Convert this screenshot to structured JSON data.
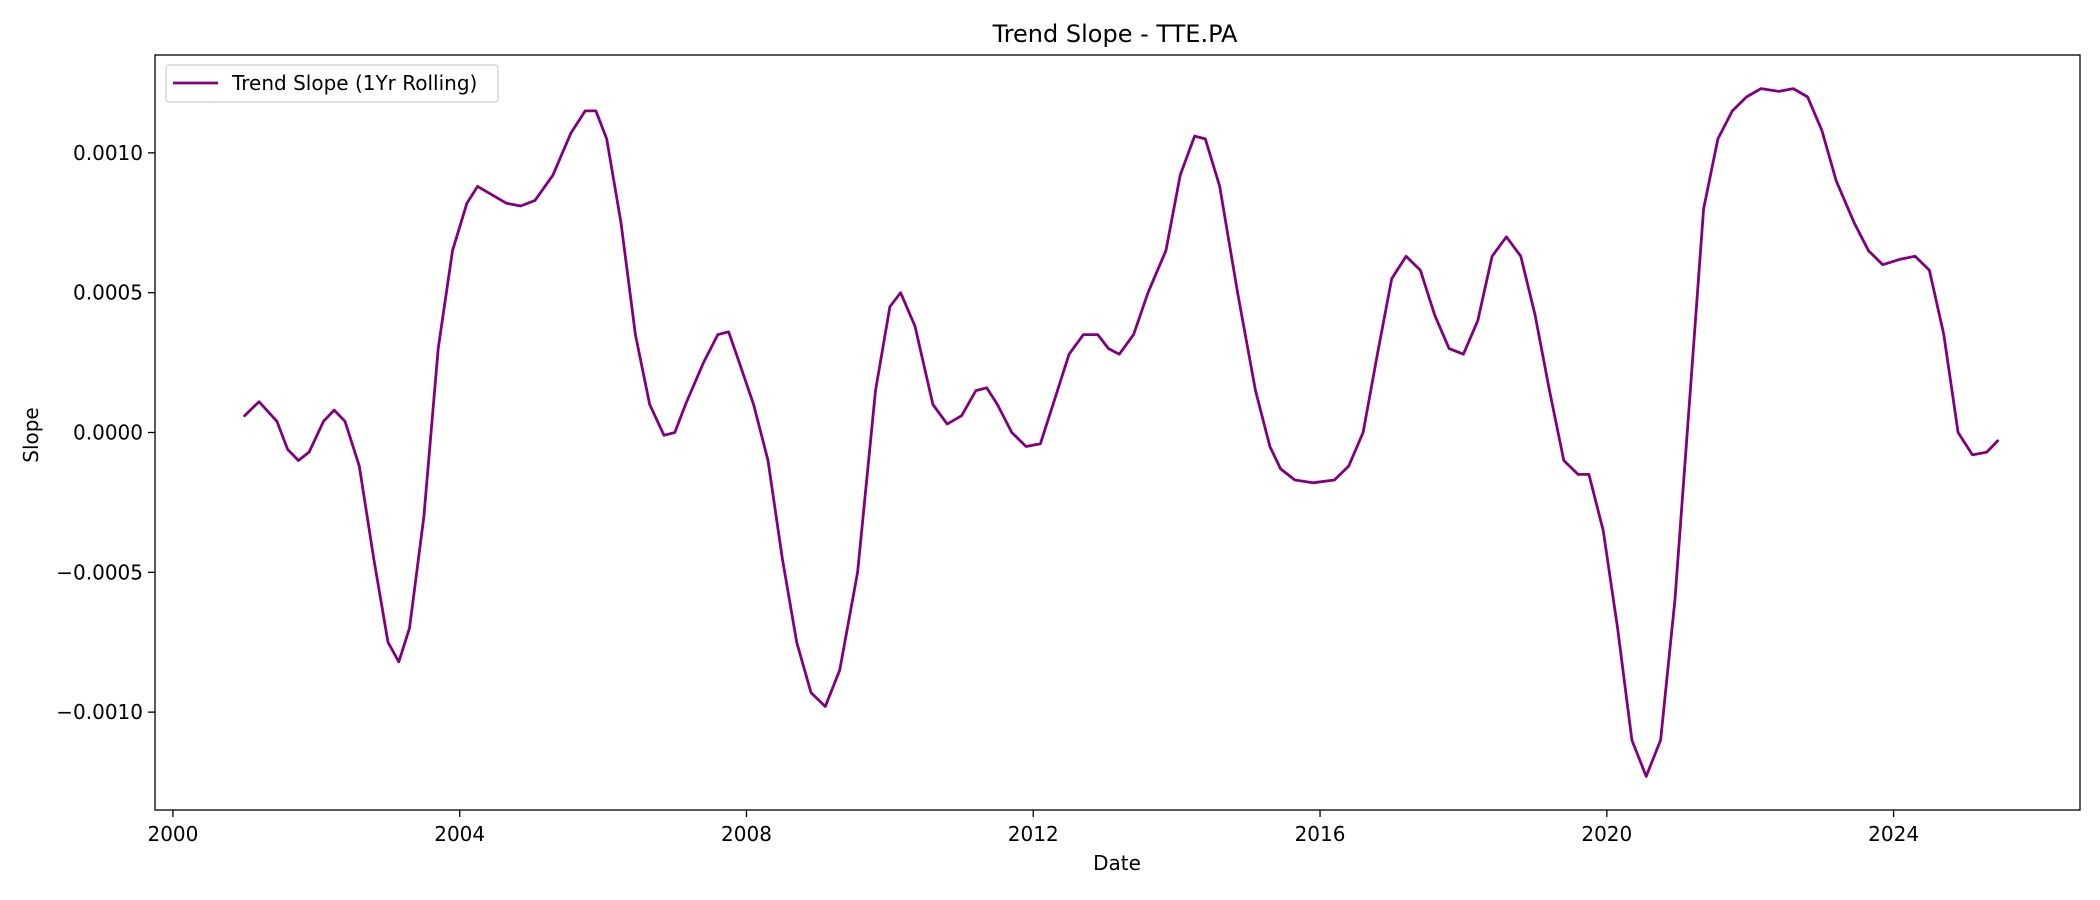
{
  "chart_data": {
    "type": "line",
    "title": "Trend Slope - TTE.PA",
    "xlabel": "Date",
    "ylabel": "Slope",
    "xlim": [
      1999.75,
      2026.6
    ],
    "ylim": [
      -0.00135,
      0.00135
    ],
    "x_ticks": [
      2000,
      2004,
      2008,
      2012,
      2016,
      2020,
      2024
    ],
    "x_tick_labels": [
      "2000",
      "2004",
      "2008",
      "2012",
      "2016",
      "2020",
      "2024"
    ],
    "y_ticks": [
      0.001,
      0.0005,
      0.0,
      -0.0005,
      -0.001
    ],
    "y_tick_labels": [
      "0.0010",
      "0.0005",
      "0.0000",
      "−0.0005",
      "−0.0010"
    ],
    "grid": false,
    "legend_position": "top-left",
    "series": [
      {
        "name": "Trend Slope (1Yr Rolling)",
        "color": "#800080",
        "points": [
          [
            2001.0,
            6e-05
          ],
          [
            2001.2,
            0.00011
          ],
          [
            2001.45,
            4e-05
          ],
          [
            2001.6,
            -6e-05
          ],
          [
            2001.75,
            -0.0001
          ],
          [
            2001.9,
            -7e-05
          ],
          [
            2002.1,
            4e-05
          ],
          [
            2002.25,
            8e-05
          ],
          [
            2002.4,
            4e-05
          ],
          [
            2002.6,
            -0.00012
          ],
          [
            2002.8,
            -0.00045
          ],
          [
            2003.0,
            -0.00075
          ],
          [
            2003.15,
            -0.00082
          ],
          [
            2003.3,
            -0.0007
          ],
          [
            2003.5,
            -0.0003
          ],
          [
            2003.7,
            0.0003
          ],
          [
            2003.9,
            0.00065
          ],
          [
            2004.1,
            0.00082
          ],
          [
            2004.25,
            0.00088
          ],
          [
            2004.45,
            0.00085
          ],
          [
            2004.65,
            0.00082
          ],
          [
            2004.85,
            0.00081
          ],
          [
            2005.05,
            0.00083
          ],
          [
            2005.3,
            0.00092
          ],
          [
            2005.55,
            0.00107
          ],
          [
            2005.75,
            0.00115
          ],
          [
            2005.9,
            0.00115
          ],
          [
            2006.05,
            0.00105
          ],
          [
            2006.25,
            0.00075
          ],
          [
            2006.45,
            0.00035
          ],
          [
            2006.65,
            0.0001
          ],
          [
            2006.85,
            -1e-05
          ],
          [
            2007.0,
            0.0
          ],
          [
            2007.15,
            0.0001
          ],
          [
            2007.4,
            0.00025
          ],
          [
            2007.6,
            0.00035
          ],
          [
            2007.75,
            0.00036
          ],
          [
            2007.9,
            0.00025
          ],
          [
            2008.1,
            0.0001
          ],
          [
            2008.3,
            -0.0001
          ],
          [
            2008.5,
            -0.00045
          ],
          [
            2008.7,
            -0.00075
          ],
          [
            2008.9,
            -0.00093
          ],
          [
            2009.1,
            -0.00098
          ],
          [
            2009.3,
            -0.00085
          ],
          [
            2009.55,
            -0.0005
          ],
          [
            2009.8,
            0.00015
          ],
          [
            2010.0,
            0.00045
          ],
          [
            2010.15,
            0.0005
          ],
          [
            2010.35,
            0.00038
          ],
          [
            2010.6,
            0.0001
          ],
          [
            2010.8,
            3e-05
          ],
          [
            2011.0,
            6e-05
          ],
          [
            2011.2,
            0.00015
          ],
          [
            2011.35,
            0.00016
          ],
          [
            2011.5,
            0.0001
          ],
          [
            2011.7,
            0.0
          ],
          [
            2011.9,
            -5e-05
          ],
          [
            2012.1,
            -4e-05
          ],
          [
            2012.3,
            0.00012
          ],
          [
            2012.5,
            0.00028
          ],
          [
            2012.7,
            0.00035
          ],
          [
            2012.9,
            0.00035
          ],
          [
            2013.05,
            0.0003
          ],
          [
            2013.2,
            0.00028
          ],
          [
            2013.4,
            0.00035
          ],
          [
            2013.6,
            0.0005
          ],
          [
            2013.85,
            0.00065
          ],
          [
            2014.05,
            0.00092
          ],
          [
            2014.25,
            0.00106
          ],
          [
            2014.4,
            0.00105
          ],
          [
            2014.6,
            0.00088
          ],
          [
            2014.85,
            0.0005
          ],
          [
            2015.1,
            0.00015
          ],
          [
            2015.3,
            -5e-05
          ],
          [
            2015.45,
            -0.00013
          ],
          [
            2015.65,
            -0.00017
          ],
          [
            2015.9,
            -0.00018
          ],
          [
            2016.2,
            -0.00017
          ],
          [
            2016.4,
            -0.00012
          ],
          [
            2016.6,
            0.0
          ],
          [
            2016.8,
            0.00028
          ],
          [
            2017.0,
            0.00055
          ],
          [
            2017.2,
            0.00063
          ],
          [
            2017.4,
            0.00058
          ],
          [
            2017.6,
            0.00042
          ],
          [
            2017.8,
            0.0003
          ],
          [
            2018.0,
            0.00028
          ],
          [
            2018.2,
            0.0004
          ],
          [
            2018.4,
            0.00063
          ],
          [
            2018.6,
            0.0007
          ],
          [
            2018.8,
            0.00063
          ],
          [
            2019.0,
            0.00042
          ],
          [
            2019.2,
            0.00015
          ],
          [
            2019.4,
            -0.0001
          ],
          [
            2019.6,
            -0.00015
          ],
          [
            2019.75,
            -0.00015
          ],
          [
            2019.95,
            -0.00035
          ],
          [
            2020.15,
            -0.0007
          ],
          [
            2020.35,
            -0.0011
          ],
          [
            2020.55,
            -0.00123
          ],
          [
            2020.75,
            -0.0011
          ],
          [
            2020.95,
            -0.0006
          ],
          [
            2021.15,
            0.0001
          ],
          [
            2021.35,
            0.0008
          ],
          [
            2021.55,
            0.00105
          ],
          [
            2021.75,
            0.00115
          ],
          [
            2021.95,
            0.0012
          ],
          [
            2022.15,
            0.00123
          ],
          [
            2022.4,
            0.00122
          ],
          [
            2022.6,
            0.00123
          ],
          [
            2022.8,
            0.0012
          ],
          [
            2023.0,
            0.00108
          ],
          [
            2023.2,
            0.0009
          ],
          [
            2023.45,
            0.00075
          ],
          [
            2023.65,
            0.00065
          ],
          [
            2023.85,
            0.0006
          ],
          [
            2024.1,
            0.00062
          ],
          [
            2024.3,
            0.00063
          ],
          [
            2024.5,
            0.00058
          ],
          [
            2024.7,
            0.00035
          ],
          [
            2024.9,
            0.0
          ],
          [
            2025.1,
            -8e-05
          ],
          [
            2025.3,
            -7e-05
          ],
          [
            2025.45,
            -3e-05
          ]
        ]
      }
    ]
  }
}
